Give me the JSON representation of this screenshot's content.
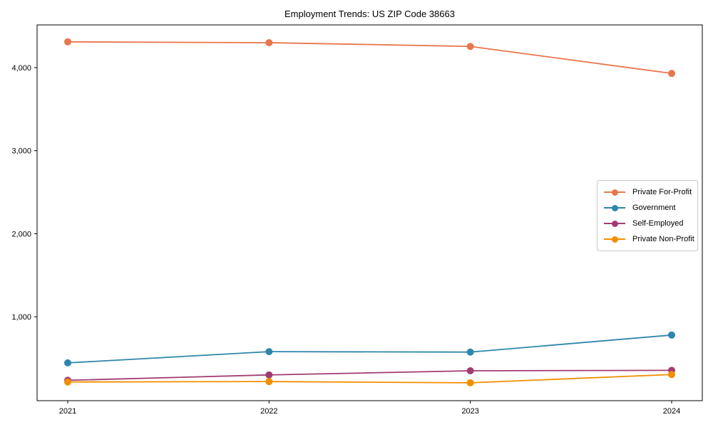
{
  "chart_data": {
    "type": "line",
    "title": "Employment Trends: US ZIP Code 38663",
    "xlabel": "",
    "ylabel": "",
    "categories": [
      "2021",
      "2022",
      "2023",
      "2024"
    ],
    "series": [
      {
        "name": "Private For-Profit",
        "color": "#E8764B",
        "values": [
          4310,
          4300,
          4255,
          3930
        ]
      },
      {
        "name": "Government",
        "color": "#2E86AB",
        "values": [
          445,
          580,
          575,
          780
        ]
      },
      {
        "name": "Self-Employed",
        "color": "#A23B72",
        "values": [
          235,
          300,
          350,
          355
        ]
      },
      {
        "name": "Private Non-Profit",
        "color": "#F18F01",
        "values": [
          215,
          220,
          205,
          305
        ]
      }
    ],
    "ylim": [
      -10,
      4514
    ],
    "yticks": [
      1000,
      2000,
      3000,
      4000
    ],
    "ytick_labels": [
      "1,000",
      "2,000",
      "3,000",
      "4,000"
    ],
    "grid": false,
    "legend_position": "center right",
    "marker": "circle",
    "background_color": "#ffffff",
    "axis_color": "#000000"
  }
}
